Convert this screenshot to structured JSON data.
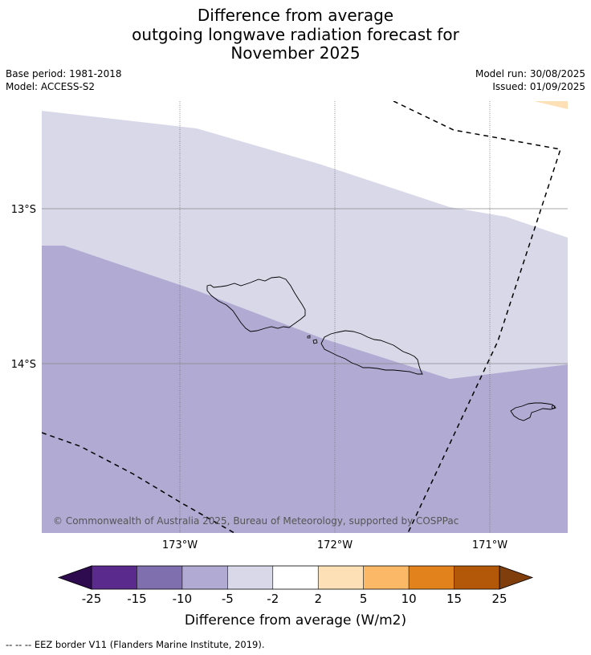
{
  "title_lines": [
    "Difference from average",
    "outgoing longwave radiation forecast for",
    "November 2025"
  ],
  "meta_left": [
    "Base period: 1981-2018",
    "Model: ACCESS-S2"
  ],
  "meta_right": [
    "Model run: 30/08/2025",
    "Issued: 01/09/2025"
  ],
  "latitude_labels": [
    "13°S",
    "14°S"
  ],
  "longitude_labels": [
    "173°W",
    "172°W",
    "171°W"
  ],
  "copyright": "© Commonwealth of Australia 2025, Bureau of Meteorology, supported by COSPPac",
  "colorbar": {
    "ticks": [
      "-25",
      "-15",
      "-10",
      "-5",
      "-2",
      "2",
      "5",
      "10",
      "15",
      "25"
    ],
    "colors": [
      "#5a2a8c",
      "#7f6fae",
      "#b1aad2",
      "#d8d8e9",
      "#ffffff",
      "#fde0b5",
      "#fbb968",
      "#e2821d",
      "#b25808"
    ],
    "under_color": "#2e0a4f",
    "over_color": "#7f3e0c",
    "label": "Difference from average (W/m2)"
  },
  "map_fill_colors": {
    "light": "#d8d8e9",
    "medium": "#b1aad2",
    "peach": "#fde0b5"
  },
  "legend_note": "--  --  -- EEZ border V11 (Flanders Marine Institute, 2019)."
}
